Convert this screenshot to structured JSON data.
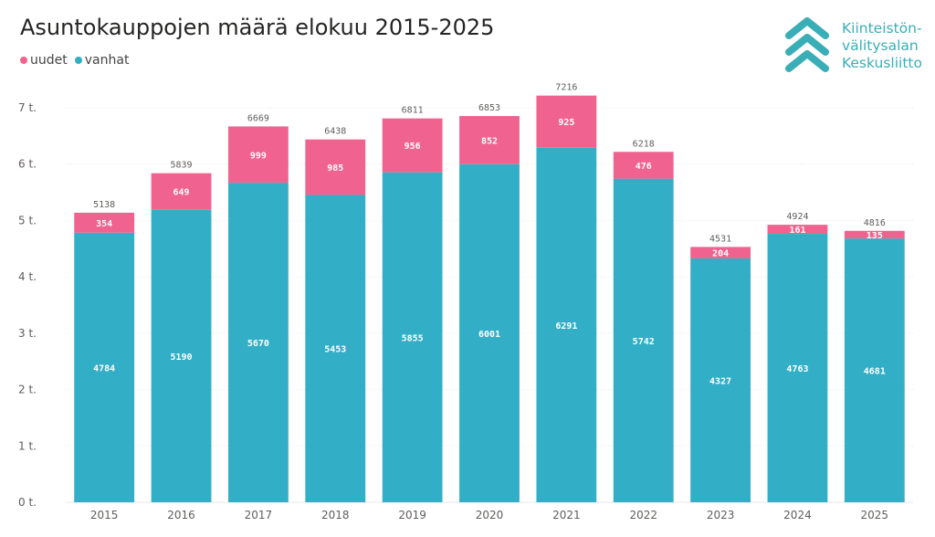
{
  "header": {
    "title": "Asuntokauppojen määrä elokuu 2015-2025"
  },
  "legend": {
    "items": [
      {
        "label": "uudet",
        "color": "#f0628f"
      },
      {
        "label": "vanhat",
        "color": "#33aec7"
      }
    ]
  },
  "logo": {
    "line1": "Kiinteistön-",
    "line2": "välitysalan",
    "line3": "Keskusliitto",
    "color": "#3aaeb7"
  },
  "chart_data": {
    "type": "bar",
    "stacked": true,
    "title": "Asuntokauppojen määrä elokuu 2015-2025",
    "xlabel": "",
    "ylabel": "",
    "categories": [
      "2015",
      "2016",
      "2017",
      "2018",
      "2019",
      "2020",
      "2021",
      "2022",
      "2023",
      "2024",
      "2025"
    ],
    "series": [
      {
        "name": "vanhat",
        "color": "#33aec7",
        "values": [
          4784,
          5190,
          5670,
          5453,
          5855,
          6001,
          6291,
          5742,
          4327,
          4763,
          4681
        ]
      },
      {
        "name": "uudet",
        "color": "#f0628f",
        "values": [
          354,
          649,
          999,
          985,
          956,
          852,
          925,
          476,
          204,
          161,
          135
        ]
      }
    ],
    "totals": [
      5138,
      5839,
      6669,
      6438,
      6811,
      6853,
      7216,
      6218,
      4531,
      4924,
      4816
    ],
    "ylim": [
      0,
      7000
    ],
    "yticks": [
      0,
      1000,
      2000,
      3000,
      4000,
      5000,
      6000,
      7000
    ],
    "ytick_labels": [
      "0 t.",
      "1 t.",
      "2 t.",
      "3 t.",
      "4 t.",
      "5 t.",
      "6 t.",
      "7 t."
    ],
    "grid": true,
    "legend_position": "top-left"
  }
}
